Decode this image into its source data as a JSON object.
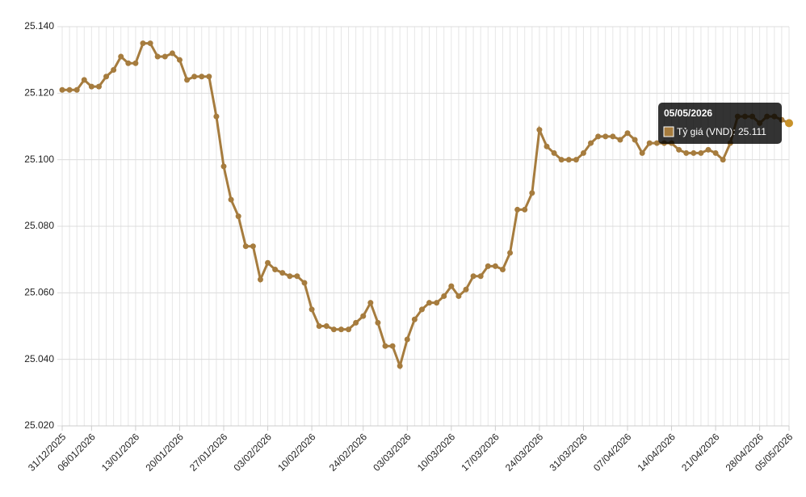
{
  "chart_data": {
    "type": "line",
    "categories": [
      "31/12/2025",
      null,
      null,
      null,
      "06/01/2026",
      null,
      null,
      null,
      null,
      null,
      "13/01/2026",
      null,
      null,
      null,
      null,
      null,
      "20/01/2026",
      null,
      null,
      null,
      null,
      null,
      "27/01/2026",
      null,
      null,
      null,
      null,
      null,
      "03/02/2026",
      null,
      null,
      null,
      null,
      null,
      "10/02/2026",
      null,
      null,
      null,
      null,
      null,
      null,
      "24/02/2026",
      null,
      null,
      null,
      null,
      null,
      "03/03/2026",
      null,
      null,
      null,
      null,
      null,
      "10/03/2026",
      null,
      null,
      null,
      null,
      null,
      "17/03/2026",
      null,
      null,
      null,
      null,
      null,
      "24/03/2026",
      null,
      null,
      null,
      null,
      null,
      "31/03/2026",
      null,
      null,
      null,
      null,
      null,
      "07/04/2026",
      null,
      null,
      null,
      null,
      null,
      "14/04/2026",
      null,
      null,
      null,
      null,
      null,
      "21/04/2026",
      null,
      null,
      null,
      null,
      null,
      "28/04/2026",
      null,
      null,
      null,
      "05/05/2026"
    ],
    "series": [
      {
        "name": "Tỷ giá (VND)",
        "color": "#a67c3e",
        "values": [
          25.121,
          25.121,
          25.121,
          25.124,
          25.122,
          25.122,
          25.125,
          25.127,
          25.131,
          25.129,
          25.129,
          25.135,
          25.135,
          25.131,
          25.131,
          25.132,
          25.13,
          25.124,
          25.125,
          25.125,
          25.125,
          25.113,
          25.098,
          25.088,
          25.083,
          25.074,
          25.074,
          25.064,
          25.069,
          25.067,
          25.066,
          25.065,
          25.065,
          25.063,
          25.055,
          25.05,
          25.05,
          25.049,
          25.049,
          25.049,
          25.051,
          25.053,
          25.057,
          25.051,
          25.044,
          25.044,
          25.038,
          25.046,
          25.052,
          25.055,
          25.057,
          25.057,
          25.059,
          25.062,
          25.059,
          25.061,
          25.065,
          25.065,
          25.068,
          25.068,
          25.067,
          25.072,
          25.085,
          25.085,
          25.09,
          25.109,
          25.104,
          25.102,
          25.1,
          25.1,
          25.1,
          25.102,
          25.105,
          25.107,
          25.107,
          25.107,
          25.106,
          25.108,
          25.106,
          25.102,
          25.105,
          25.105,
          25.105,
          25.105,
          25.103,
          25.102,
          25.102,
          25.102,
          25.103,
          25.102,
          25.1,
          25.105,
          25.113,
          25.113,
          25.113,
          25.111,
          25.113,
          25.113,
          25.112,
          25.111
        ]
      }
    ],
    "ylim": [
      25.02,
      25.14
    ],
    "yticks": [
      {
        "value": 25.02,
        "label": "25.020"
      },
      {
        "value": 25.04,
        "label": "25.040"
      },
      {
        "value": 25.06,
        "label": "25.060"
      },
      {
        "value": 25.08,
        "label": "25.080"
      },
      {
        "value": 25.1,
        "label": "25.100"
      },
      {
        "value": 25.12,
        "label": "25.120"
      },
      {
        "value": 25.14,
        "label": "25.140"
      }
    ],
    "grid": true,
    "tooltip": {
      "text": "Tỷ giá (VND): 25.111"
    }
  }
}
